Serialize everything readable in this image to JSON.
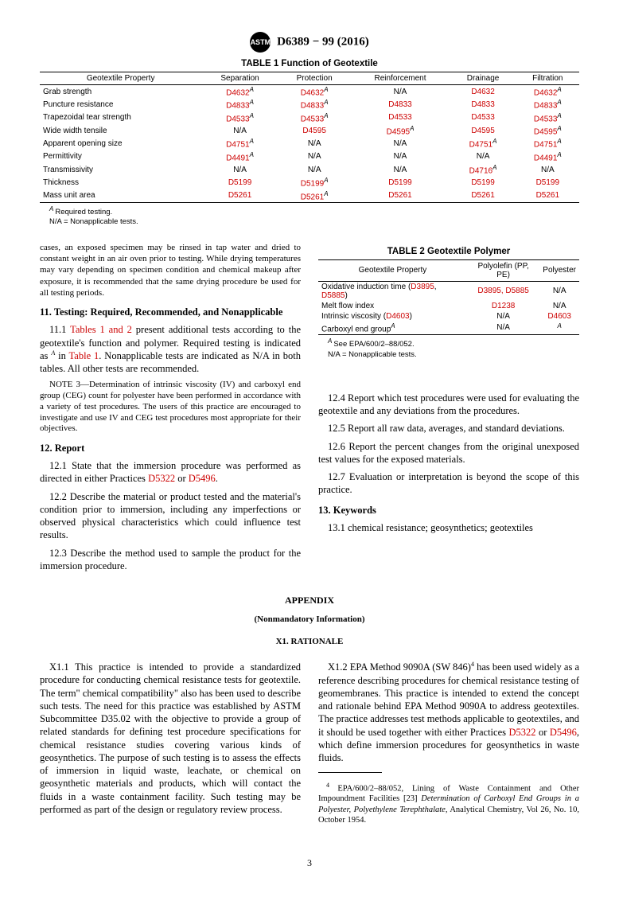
{
  "header": {
    "designation": "D6389 − 99 (2016)"
  },
  "table1": {
    "title": "TABLE 1 Function of Geotextile",
    "columns": [
      "Geotextile Property",
      "Separation",
      "Protection",
      "Reinforcement",
      "Drainage",
      "Filtration"
    ],
    "rows": [
      {
        "prop": "Grab strength",
        "sep": "D4632",
        "sepA": true,
        "pro": "D4632",
        "proA": true,
        "rei": "N/A",
        "dra": "D4632",
        "fil": "D4632",
        "filA": true
      },
      {
        "prop": "Puncture resistance",
        "sep": "D4833",
        "sepA": true,
        "pro": "D4833",
        "proA": true,
        "rei": "D4833",
        "dra": "D4833",
        "fil": "D4833",
        "filA": true
      },
      {
        "prop": "Trapezoidal tear strength",
        "sep": "D4533",
        "sepA": true,
        "pro": "D4533",
        "proA": true,
        "rei": "D4533",
        "dra": "D4533",
        "fil": "D4533",
        "filA": true
      },
      {
        "prop": "Wide width tensile",
        "sep": "N/A",
        "pro": "D4595",
        "rei": "D4595",
        "reiA": true,
        "dra": "D4595",
        "fil": "D4595",
        "filA": true
      },
      {
        "prop": "Apparent opening size",
        "sep": "D4751",
        "sepA": true,
        "pro": "N/A",
        "rei": "N/A",
        "dra": "D4751",
        "draA": true,
        "fil": "D4751",
        "filA": true
      },
      {
        "prop": "Permittivity",
        "sep": "D4491",
        "sepA": true,
        "pro": "N/A",
        "rei": "N/A",
        "dra": "N/A",
        "fil": "D4491",
        "filA": true
      },
      {
        "prop": "Transmissivity",
        "sep": "N/A",
        "pro": "N/A",
        "rei": "N/A",
        "dra": "D4716",
        "draA": true,
        "fil": "N/A"
      },
      {
        "prop": "Thickness",
        "sep": "D5199",
        "pro": "D5199",
        "proA": true,
        "rei": "D5199",
        "dra": "D5199",
        "fil": "D5199"
      },
      {
        "prop": "Mass unit area",
        "sep": "D5261",
        "pro": "D5261",
        "proA": true,
        "rei": "D5261",
        "dra": "D5261",
        "fil": "D5261"
      }
    ],
    "footA": "Required testing.",
    "footNA": "N/A = Nonapplicable tests."
  },
  "table2": {
    "title": "TABLE 2 Geotextile Polymer",
    "columns": [
      "Geotextile Property",
      "Polyolefin (PP, PE)",
      "Polyester"
    ],
    "rows": [
      {
        "prop": "Oxidative induction time (",
        "propLinks": [
          "D3895",
          ", ",
          "D5885"
        ],
        "propEnd": ")",
        "poly": "D3895, D5885",
        "polyRed": true,
        "pe": "N/A"
      },
      {
        "prop": "Melt flow index",
        "poly": "D1238",
        "polyRed": true,
        "pe": "N/A"
      },
      {
        "prop": "Intrinsic viscosity (",
        "propLinks": [
          "D4603"
        ],
        "propEnd": ")",
        "poly": "N/A",
        "pe": "D4603",
        "peRed": true
      },
      {
        "prop": "Carboxyl end group",
        "propA": true,
        "poly": "N/A",
        "pe": "",
        "peA": true
      }
    ],
    "footA": "See EPA/600/2–88/052.",
    "footNA": "N/A = Nonapplicable tests."
  },
  "body": {
    "lead": "cases, an exposed specimen may be rinsed in tap water and dried to constant weight in an air oven prior to testing. While drying temperatures may vary depending on specimen condition and chemical makeup after exposure, it is recommended that the same drying procedure be used for all testing periods.",
    "s11": {
      "head": "11. Testing: Required, Recommended, and Nonapplicable",
      "p1a": "11.1 ",
      "p1link": "Tables 1 and 2",
      "p1b": " present additional tests according to the geotextile's function and polymer. Required testing is indicated as ",
      "p1c": " in ",
      "p1link2": "Table 1",
      "p1d": ". Nonapplicable tests are indicated as N/A in both tables. All other tests are recommended.",
      "note": "NOTE 3—Determination of intrinsic viscosity (IV) and carboxyl end group (CEG) count for polyester have been performed in accordance with a variety of test procedures. The users of this practice are encouraged to investigate and use IV and CEG test procedures most appropriate for their objectives."
    },
    "s12": {
      "head": "12. Report",
      "p1": "12.1 State that the immersion procedure was performed as directed in either Practices ",
      "p1link1": "D5322",
      "p1mid": " or ",
      "p1link2": "D5496",
      "p1end": ".",
      "p2": "12.2 Describe the material or product tested and the material's condition prior to immersion, including any imperfections or observed physical characteristics which could influence test results.",
      "p3": "12.3 Describe the method used to sample the product for the immersion procedure.",
      "p4": "12.4 Report which test procedures were used for evaluating the geotextile and any deviations from the procedures.",
      "p5": "12.5 Report all raw data, averages, and standard deviations.",
      "p6": "12.6 Report the percent changes from the original unexposed test values for the exposed materials.",
      "p7": "12.7 Evaluation or interpretation is beyond the scope of this practice."
    },
    "s13": {
      "head": "13. Keywords",
      "p1": "13.1 chemical resistance; geosynthetics; geotextiles"
    }
  },
  "appendix": {
    "head": "APPENDIX",
    "sub1": "(Nonmandatory Information)",
    "sub2": "X1. RATIONALE",
    "x11": "X1.1 This practice is intended to provide a standardized procedure for conducting chemical resistance tests for geotextile. The term\" chemical compatibility\" also has been used to describe such tests. The need for this practice was established by ASTM Subcommittee D35.02 with the objective to provide a group of related standards for defining test procedure specifications for chemical resistance studies covering various kinds of geosynthetics. The purpose of such testing is to assess the effects of immersion in liquid waste, leachate, or chemical on geosynthetic materials and products, which will contact the fluids in a waste containment facility. Such testing may be performed as part of the design or regulatory review process.",
    "x12a": "X1.2 EPA Method 9090A (SW 846)",
    "x12b": " has been used widely as a reference describing procedures for chemical resistance testing of geomembranes. This practice is intended to extend the concept and rationale behind EPA Method 9090A to address geotextiles. The practice addresses test methods applicable to geotextiles, and it should be used together with either Practices ",
    "x12link1": "D5322",
    "x12mid": " or ",
    "x12link2": "D5496",
    "x12c": ", which define immersion procedures for geosynthetics in waste fluids.",
    "foot4a": "EPA/600/2–88/052, Lining of Waste Containment and Other Impoundment Facilities [23] ",
    "foot4b": "Determination of Carboxyl End Groups in a Polyester, Polyethylene Terephthalate",
    "foot4c": ", Analytical Chemistry, Vol 26, No. 10, October 1954."
  },
  "page": "3"
}
